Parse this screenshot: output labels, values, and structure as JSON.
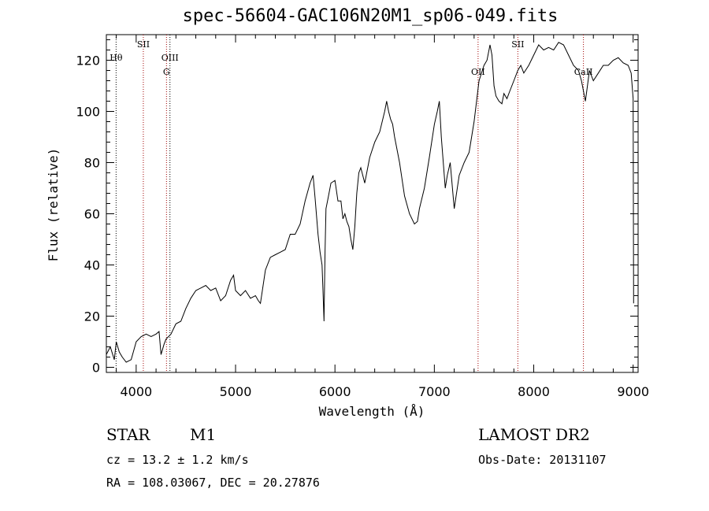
{
  "title": "spec-56604-GAC106N20M1_sp06-049.fits",
  "info": {
    "class": "STAR",
    "subclass": "M1",
    "survey": "LAMOST DR2",
    "cz": "cz = 13.2 ± 1.2 km/s",
    "obs_date": "Obs-Date: 20131107",
    "radec": "RA = 108.03067, DEC =  20.27876"
  },
  "chart_data": {
    "type": "line",
    "title": "spec-56604-GAC106N20M1_sp06-049.fits",
    "xlabel": "Wavelength (Å)",
    "ylabel": "Flux (relative)",
    "xlim": [
      3700,
      9050
    ],
    "ylim": [
      -2,
      130
    ],
    "xticks": [
      4000,
      5000,
      6000,
      7000,
      8000,
      9000
    ],
    "yticks": [
      0,
      20,
      40,
      60,
      80,
      100,
      120
    ],
    "grid": false,
    "line_color": "#000000",
    "marker_color": "#a00000",
    "line_markers": [
      {
        "label": "Hθ",
        "x": 3798,
        "style": "dotted-black",
        "label_level": "upper"
      },
      {
        "label": "SII",
        "x": 4072,
        "style": "dotted-red",
        "label_level": "top"
      },
      {
        "label": "OIII",
        "x": 4340,
        "style": "dotted-black",
        "label_level": "upper"
      },
      {
        "label": "G",
        "x": 4305,
        "style": "dotted-red",
        "label_level": "lower"
      },
      {
        "label": "OII",
        "x": 7440,
        "style": "dotted-red",
        "label_level": "lower"
      },
      {
        "label": "SII",
        "x": 7840,
        "style": "dotted-red",
        "label_level": "top"
      },
      {
        "label": "CaII",
        "x": 8500,
        "style": "dotted-red",
        "label_level": "lower"
      }
    ],
    "series": [
      {
        "x": [
          3700,
          3740,
          3780,
          3800,
          3830,
          3860,
          3900,
          3950,
          4000,
          4050,
          4100,
          4150,
          4200,
          4230,
          4250,
          4280,
          4300,
          4350,
          4400,
          4450,
          4500,
          4550,
          4600,
          4650,
          4700,
          4750,
          4800,
          4850,
          4900,
          4950,
          4980,
          5000,
          5050,
          5100,
          5150,
          5200,
          5230,
          5250,
          5300,
          5350,
          5400,
          5450,
          5500,
          5550,
          5600,
          5650,
          5700,
          5750,
          5780,
          5800,
          5830,
          5850,
          5870,
          5880,
          5890,
          5900,
          5910,
          5930,
          5960,
          6000,
          6030,
          6060,
          6080,
          6100,
          6120,
          6140,
          6160,
          6180,
          6200,
          6220,
          6240,
          6260,
          6280,
          6300,
          6350,
          6400,
          6450,
          6500,
          6520,
          6540,
          6560,
          6580,
          6600,
          6650,
          6700,
          6750,
          6800,
          6830,
          6850,
          6900,
          6950,
          7000,
          7030,
          7050,
          7070,
          7090,
          7110,
          7130,
          7160,
          7200,
          7250,
          7300,
          7350,
          7400,
          7450,
          7500,
          7530,
          7560,
          7580,
          7600,
          7620,
          7650,
          7680,
          7700,
          7730,
          7760,
          7800,
          7840,
          7870,
          7900,
          7950,
          8000,
          8050,
          8100,
          8150,
          8200,
          8250,
          8300,
          8350,
          8400,
          8450,
          8480,
          8500,
          8520,
          8540,
          8560,
          8600,
          8650,
          8700,
          8750,
          8800,
          8850,
          8900,
          8950,
          8980,
          9000,
          9005
        ],
        "values": [
          5,
          8,
          3,
          10,
          6,
          4,
          2,
          3,
          10,
          12,
          13,
          12,
          13,
          14,
          5,
          9,
          11,
          13,
          17,
          18,
          23,
          27,
          30,
          31,
          32,
          30,
          31,
          26,
          28,
          34,
          36,
          30,
          28,
          30,
          27,
          28,
          26,
          25,
          38,
          43,
          44,
          45,
          46,
          52,
          52,
          56,
          65,
          72,
          75,
          66,
          52,
          45,
          40,
          30,
          18,
          45,
          62,
          66,
          72,
          73,
          65,
          65,
          58,
          60,
          57,
          55,
          50,
          46,
          55,
          68,
          76,
          78,
          75,
          72,
          82,
          88,
          92,
          100,
          104,
          100,
          97,
          95,
          90,
          80,
          67,
          60,
          56,
          57,
          62,
          70,
          82,
          95,
          100,
          104,
          90,
          80,
          70,
          75,
          80,
          62,
          75,
          80,
          84,
          96,
          112,
          118,
          120,
          126,
          122,
          110,
          106,
          104,
          103,
          107,
          105,
          108,
          112,
          116,
          118,
          115,
          118,
          122,
          126,
          124,
          125,
          124,
          127,
          126,
          122,
          118,
          116,
          112,
          108,
          104,
          110,
          116,
          112,
          115,
          118,
          118,
          120,
          121,
          119,
          118,
          115,
          105,
          25
        ]
      }
    ]
  }
}
